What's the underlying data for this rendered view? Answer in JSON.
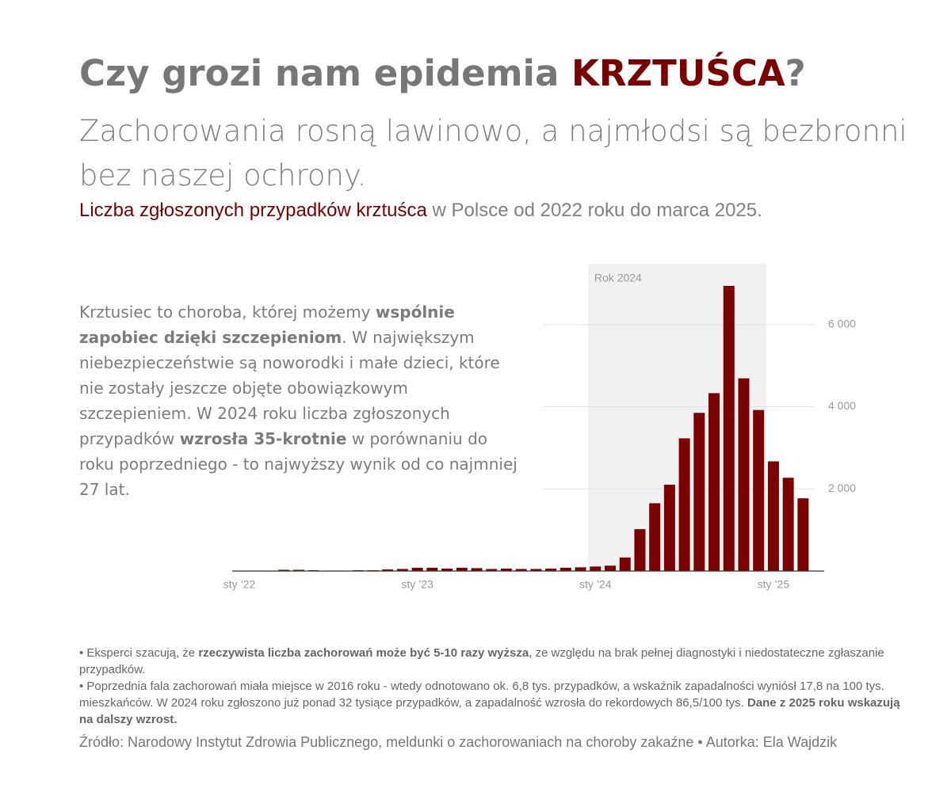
{
  "header": {
    "title": [
      "Czy grozi nam epidemia ",
      "KRZTUŚCA",
      "?"
    ],
    "subtitle": "Zachorowania rosną lawinowo, a najmłodsi są bezbronni bez naszej ochrony.",
    "caption": [
      "Liczba zgłoszonych przypadków krztuśca",
      " w Polsce od 2022 roku do marca 2025."
    ]
  },
  "description": [
    "Krztusiec to choroba, której możemy ",
    "wspólnie zapobiec dzięki szczepieniom",
    ". W największym niebezpieczeństwie są noworodki i małe dzieci, które nie zostały jeszcze objęte obowiązkowym szczepieniem. W 2024 roku liczba zgłoszonych przypadków ",
    "wzrosła 35-krotnie",
    " w porównaniu do roku poprzedniego - to najwyższy wynik od co najmniej 27 lat."
  ],
  "notes": [
    [
      "• Eksperci szacują, że ",
      "rzeczywista liczba zachorowań może być 5-10 razy wyższa",
      ", ze względu na brak pełnej diagnostyki i niedostateczne zgłaszanie przypadków."
    ],
    [
      "• Poprzednia fala zachorowań miała miejsce w 2016 roku - wtedy odnotowano ok. 6,8 tys. przypadków, a wskaźnik zapadalności wyniósł 17,8 na 100 tys. mieszkańców. W 2024 roku zgłoszono już ponad 32 tysiące przypadków, a zapadalność wzrosła do rekordowych 86,5/100 tys. ",
      "Dane z 2025 roku wskazują na dalszy wzrost."
    ]
  ],
  "source": "Źródło: Narodowy Instytut Zdrowia Publicznego, meldunki o zachorowaniach na choroby zakaźne • Autorka: Ela Wajdzik",
  "chart_data": {
    "type": "bar",
    "annotation": "Rok 2024",
    "color": "#7b0000",
    "categories": [
      "sty ’22",
      null,
      null,
      null,
      null,
      null,
      null,
      null,
      null,
      null,
      null,
      null,
      "sty ’23",
      null,
      null,
      null,
      null,
      null,
      null,
      null,
      null,
      null,
      null,
      null,
      "sty ’24",
      null,
      null,
      null,
      null,
      null,
      null,
      null,
      null,
      null,
      null,
      null,
      "sty ’25",
      null,
      null
    ],
    "values": [
      10,
      10,
      10,
      30,
      30,
      20,
      10,
      10,
      20,
      20,
      40,
      50,
      80,
      80,
      60,
      80,
      70,
      50,
      60,
      50,
      50,
      60,
      80,
      90,
      110,
      130,
      330,
      1020,
      1650,
      2100,
      3230,
      3850,
      4330,
      6940,
      4690,
      3920,
      2670,
      2270,
      1770
    ],
    "ylim": [
      0,
      7480
    ],
    "yticks": [
      {
        "value": 2000,
        "label": "2 000"
      },
      {
        "value": 4000,
        "label": "4 000"
      },
      {
        "value": 6000,
        "label": "6 000"
      }
    ],
    "grid": true
  }
}
